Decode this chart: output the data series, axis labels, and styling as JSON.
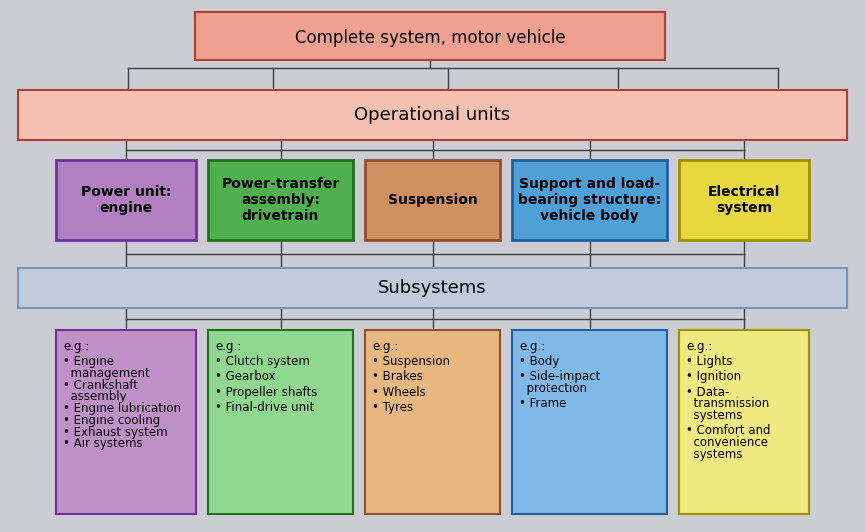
{
  "bg_color": "#ccccd4",
  "title_box": {
    "text": "Complete system, motor vehicle",
    "fill": "#f0a090",
    "fill_top": "#e05040",
    "edge": "#b04030",
    "fontsize": 12,
    "fontweight": "normal"
  },
  "operational_box": {
    "text": "Operational units",
    "fill": "#f4c0b0",
    "edge": "#b04030",
    "fontsize": 13,
    "fontweight": "normal"
  },
  "subsystems_box": {
    "text": "Subsystems",
    "fill": "#c0ccdc",
    "edge": "#8090b0",
    "fontsize": 13,
    "fontweight": "normal"
  },
  "mid_boxes": [
    {
      "label": "Power unit:\nengine",
      "fill": "#b080c0",
      "edge": "#7030a0",
      "fontweight": "bold",
      "fontsize": 10
    },
    {
      "label": "Power-transfer\nassembly:\ndrivetrain",
      "fill": "#50b050",
      "edge": "#207020",
      "fontweight": "bold",
      "fontsize": 10
    },
    {
      "label": "Suspension",
      "fill": "#d09060",
      "edge": "#905030",
      "fontweight": "bold",
      "fontsize": 10
    },
    {
      "label": "Support and load-\nbearing structure:\nvehicle body",
      "fill": "#50a0d8",
      "edge": "#2060a0",
      "fontweight": "bold",
      "fontsize": 10
    },
    {
      "label": "Electrical\nsystem",
      "fill": "#e8d840",
      "edge": "#a09000",
      "fontweight": "bold",
      "fontsize": 10
    }
  ],
  "bottom_boxes": [
    {
      "fill": "#c090c8",
      "edge": "#7030a0",
      "lines": [
        "e.g.:",
        "",
        "• Engine",
        "  management",
        "• Crankshaft",
        "  assembly",
        "• Engine lubrication",
        "• Engine cooling",
        "• Exhaust system",
        "• Air systems"
      ],
      "fontsize": 8.5
    },
    {
      "fill": "#90d890",
      "edge": "#207020",
      "lines": [
        "e.g.:",
        "",
        "• Clutch system",
        "",
        "• Gearbox",
        "",
        "• Propeller shafts",
        "",
        "• Final-drive unit"
      ],
      "fontsize": 8.5
    },
    {
      "fill": "#e8b880",
      "edge": "#905030",
      "lines": [
        "e.g.:",
        "",
        "• Suspension",
        "",
        "• Brakes",
        "",
        "• Wheels",
        "",
        "• Tyres"
      ],
      "fontsize": 8.5
    },
    {
      "fill": "#80b8e8",
      "edge": "#2060a0",
      "lines": [
        "e.g.:",
        "",
        "• Body",
        "",
        "• Side-impact",
        "  protection",
        "",
        "• Frame"
      ],
      "fontsize": 8.5
    },
    {
      "fill": "#f0e880",
      "edge": "#a09000",
      "lines": [
        "e.g.:",
        "",
        "• Lights",
        "",
        "• Ignition",
        "",
        "• Data-",
        "  transmission",
        "  systems",
        "",
        "• Comfort and",
        "  convenience",
        "  systems"
      ],
      "fontsize": 8.5
    }
  ],
  "line_color": "#404040",
  "line_width": 1.0
}
